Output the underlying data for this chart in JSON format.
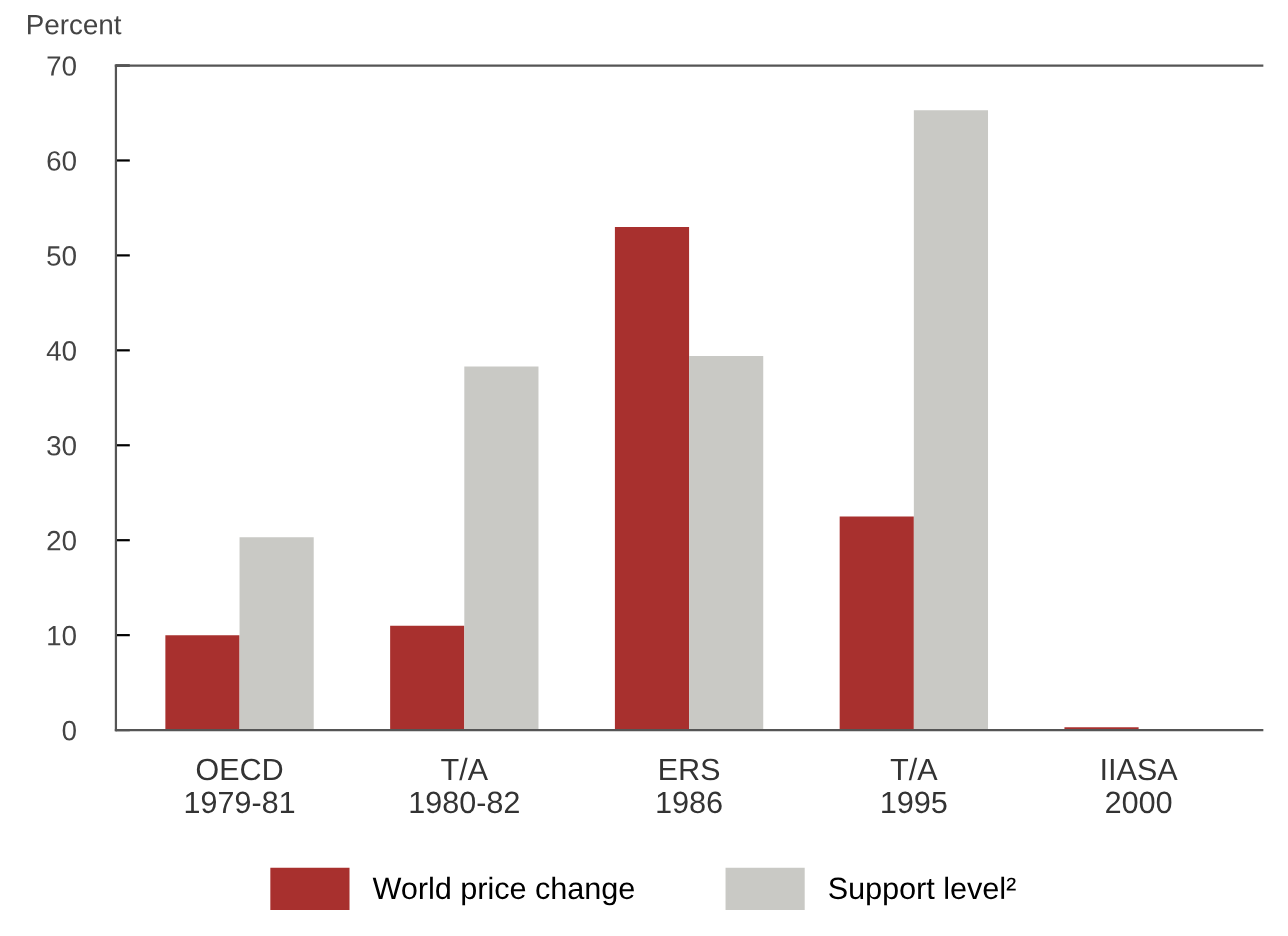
{
  "chart_data": {
    "type": "bar",
    "ylabel": "Percent",
    "categories": [
      "OECD\n1979-81",
      "T/A\n1980-82",
      "ERS\n1986",
      "T/A\n1995",
      "IIASA\n2000"
    ],
    "series": [
      {
        "name": "World price change",
        "color": "#a8302e",
        "values": [
          10,
          11,
          53,
          22.5,
          0.3
        ]
      },
      {
        "name": "Support level²",
        "color": "#c9c9c5",
        "values": [
          20.3,
          38.3,
          39.4,
          65.3,
          null
        ]
      }
    ],
    "ylim": [
      0,
      70
    ],
    "yticks": [
      0,
      10,
      20,
      30,
      40,
      50,
      60,
      70
    ],
    "grid": false,
    "legend": "bottom"
  }
}
